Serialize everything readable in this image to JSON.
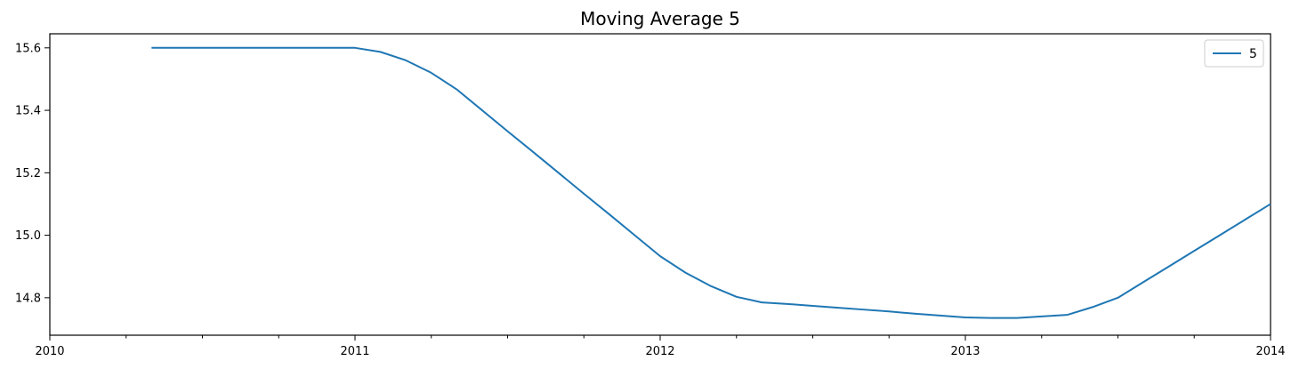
{
  "chart_data": {
    "type": "line",
    "title": "Moving Average 5",
    "xlabel": "",
    "ylabel": "",
    "x_tick_labels": [
      "2010",
      "2011",
      "2012",
      "2013",
      "2014"
    ],
    "y_tick_labels": [
      "14.8",
      "15.0",
      "15.2",
      "15.4",
      "15.6"
    ],
    "xlim": [
      "2010-01",
      "2014-01"
    ],
    "ylim": [
      14.68,
      15.645
    ],
    "grid": false,
    "legend_position": "top-right",
    "series": [
      {
        "name": "5",
        "color": "#1f77b4",
        "x": [
          "2010-05",
          "2010-06",
          "2010-07",
          "2010-08",
          "2010-09",
          "2010-10",
          "2010-11",
          "2010-12",
          "2011-01",
          "2011-02",
          "2011-03",
          "2011-04",
          "2011-05",
          "2011-06",
          "2011-07",
          "2011-08",
          "2011-09",
          "2011-10",
          "2011-11",
          "2011-12",
          "2012-01",
          "2012-02",
          "2012-03",
          "2012-04",
          "2012-05",
          "2012-06",
          "2012-07",
          "2012-08",
          "2012-09",
          "2012-10",
          "2012-11",
          "2012-12",
          "2013-01",
          "2013-02",
          "2013-03",
          "2013-04",
          "2013-05",
          "2013-06",
          "2013-07",
          "2013-08",
          "2013-09",
          "2013-10",
          "2013-11",
          "2013-12",
          "2014-01"
        ],
        "values": [
          15.6,
          15.6,
          15.6,
          15.6,
          15.6,
          15.6,
          15.6,
          15.6,
          15.6,
          15.587,
          15.56,
          15.52,
          15.467,
          15.4,
          15.333,
          15.267,
          15.2,
          15.133,
          15.067,
          15.0,
          14.933,
          14.88,
          14.837,
          14.803,
          14.785,
          14.78,
          14.774,
          14.768,
          14.762,
          14.756,
          14.749,
          14.743,
          14.737,
          14.735,
          14.735,
          14.74,
          14.745,
          14.77,
          14.8,
          14.85,
          14.9,
          14.95,
          15.0,
          15.05,
          15.1
        ]
      }
    ]
  }
}
